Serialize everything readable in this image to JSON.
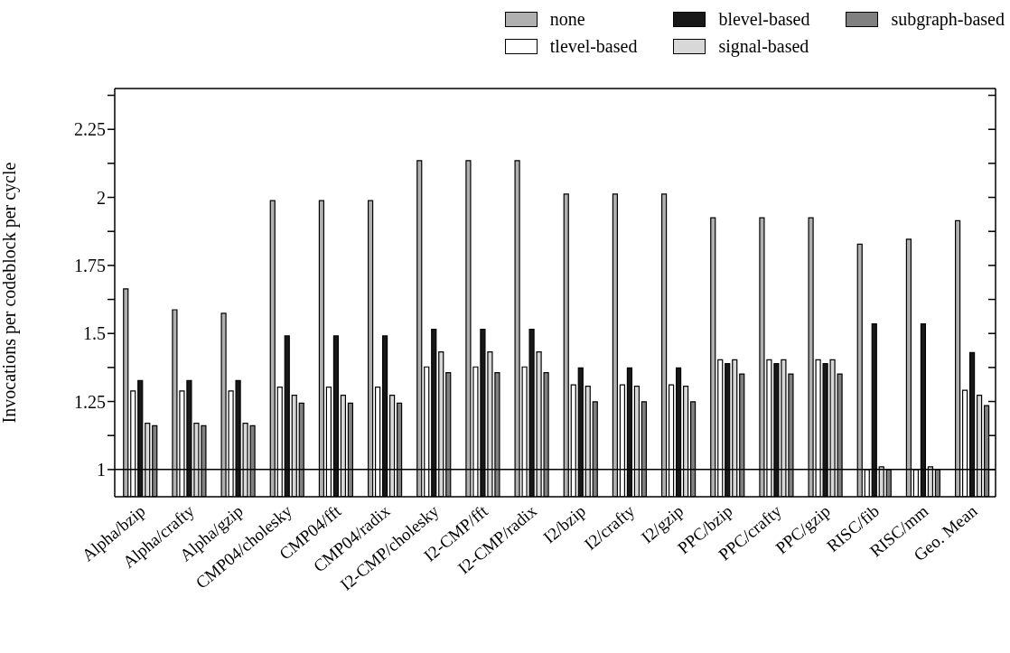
{
  "chart_data": {
    "type": "bar",
    "ylabel": "Invocations per codeblock per cycle",
    "categories": [
      "Alpha/bzip",
      "Alpha/crafty",
      "Alpha/gzip",
      "CMP04/cholesky",
      "CMP04/fft",
      "CMP04/radix",
      "I2-CMP/cholesky",
      "I2-CMP/fft",
      "I2-CMP/radix",
      "I2/bzip",
      "I2/crafty",
      "I2/gzip",
      "PPC/bzip",
      "PPC/crafty",
      "PPC/gzip",
      "RISC/fib",
      "RISC/mm",
      "Geo. Mean"
    ],
    "series": [
      {
        "name": "none",
        "color": "#b0b0b0",
        "values": [
          1.664,
          1.587,
          1.574,
          1.988,
          1.988,
          1.988,
          2.135,
          2.135,
          2.135,
          2.012,
          2.012,
          2.012,
          1.925,
          1.925,
          1.925,
          1.828,
          1.846,
          1.914
        ]
      },
      {
        "name": "tlevel-based",
        "color": "#ffffff",
        "values": [
          1.289,
          1.289,
          1.289,
          1.303,
          1.303,
          1.303,
          1.377,
          1.377,
          1.377,
          1.311,
          1.311,
          1.311,
          1.403,
          1.403,
          1.403,
          1.0,
          1.0,
          1.291
        ]
      },
      {
        "name": "blevel-based",
        "color": "#181818",
        "values": [
          1.327,
          1.327,
          1.327,
          1.491,
          1.491,
          1.491,
          1.515,
          1.515,
          1.515,
          1.373,
          1.373,
          1.373,
          1.389,
          1.389,
          1.389,
          1.535,
          1.535,
          1.43
        ]
      },
      {
        "name": "signal-based",
        "color": "#d8d8d8",
        "values": [
          1.17,
          1.17,
          1.17,
          1.273,
          1.273,
          1.273,
          1.432,
          1.432,
          1.432,
          1.306,
          1.306,
          1.306,
          1.403,
          1.403,
          1.403,
          1.01,
          1.01,
          1.273
        ]
      },
      {
        "name": "subgraph-based",
        "color": "#808080",
        "values": [
          1.161,
          1.161,
          1.161,
          1.244,
          1.244,
          1.244,
          1.356,
          1.356,
          1.356,
          1.249,
          1.249,
          1.249,
          1.351,
          1.351,
          1.351,
          1.0,
          1.0,
          1.235
        ]
      }
    ],
    "ylim": [
      0.9,
      2.4
    ],
    "yticks": [
      1,
      {
        "value": 1.125,
        "label": null
      },
      1.25,
      {
        "value": 1.375,
        "label": null
      },
      1.5,
      {
        "value": 1.625,
        "label": null
      },
      1.75,
      {
        "value": 1.875,
        "label": null
      },
      2,
      {
        "value": 2.125,
        "label": null
      },
      2.25,
      {
        "value": 2.375,
        "label": null
      }
    ],
    "ref_lines": [
      {
        "axis": "y",
        "value": 1,
        "color": "#000000"
      }
    ],
    "grid": false,
    "legend": "top right"
  }
}
